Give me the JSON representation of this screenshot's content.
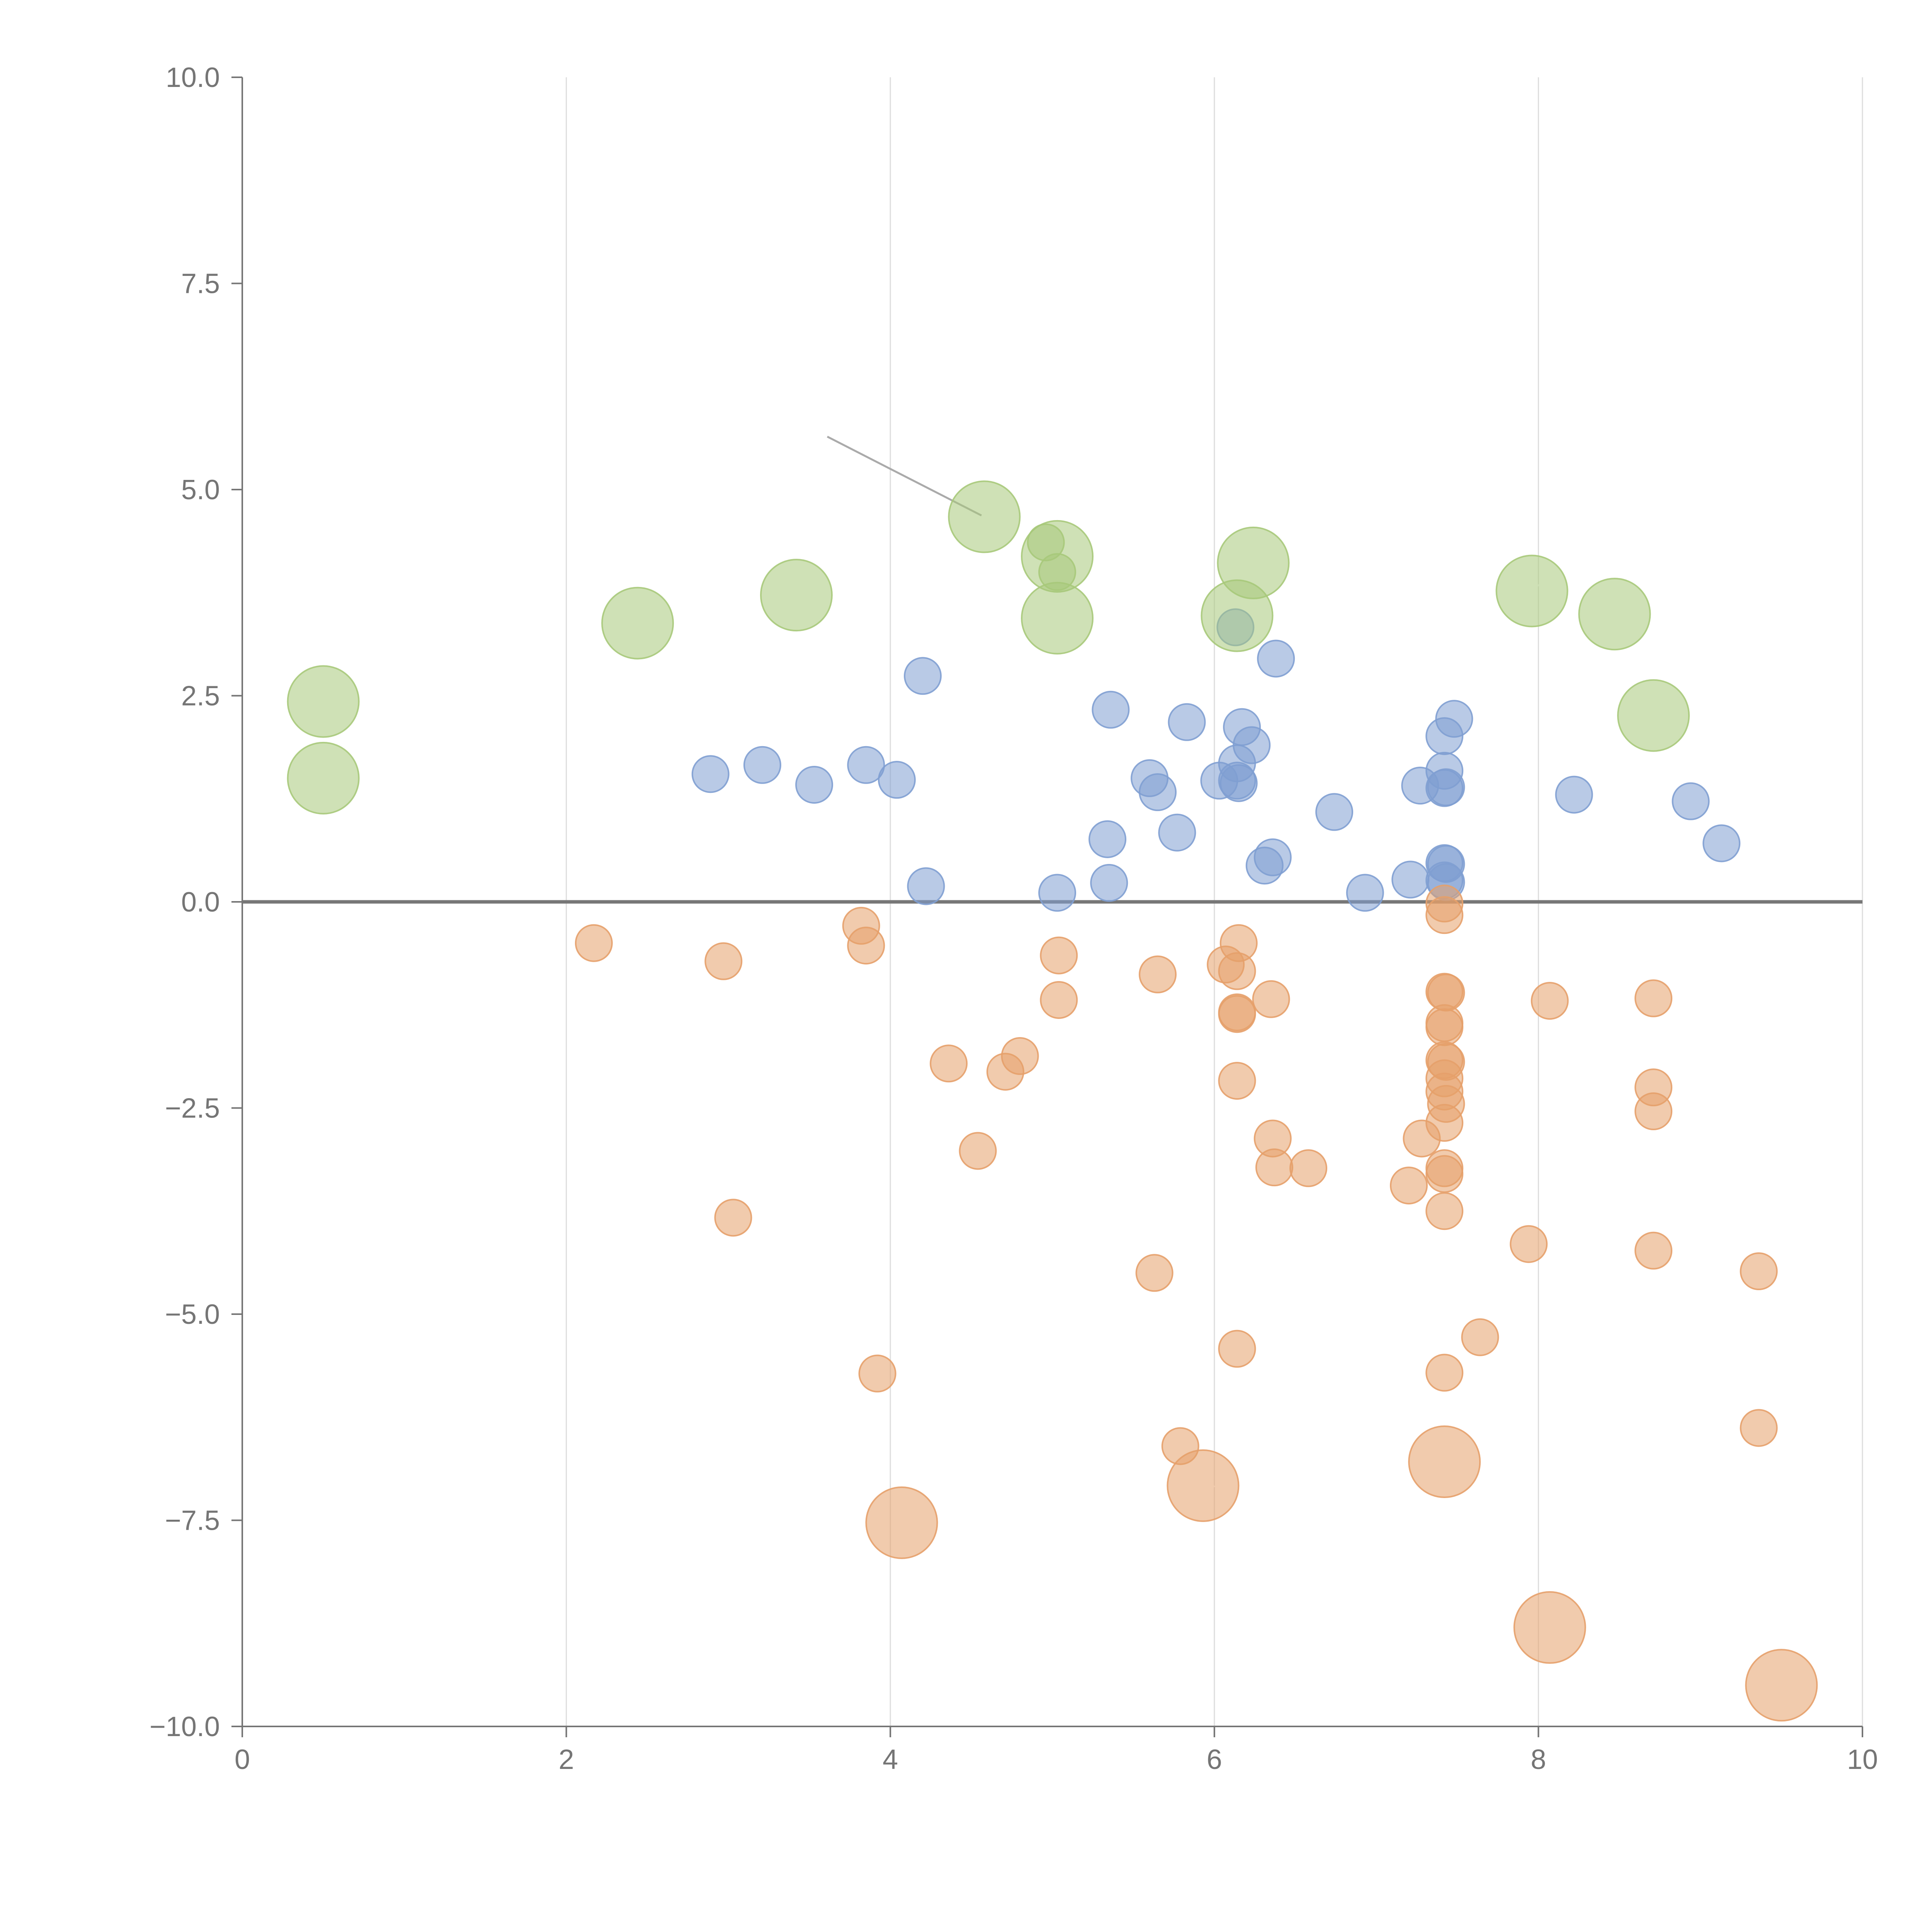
{
  "chart_data": {
    "type": "scatter",
    "title": "",
    "xlabel": "",
    "ylabel": "",
    "xlim": [
      0,
      10
    ],
    "ylim": [
      -10,
      10
    ],
    "x_ticks": [
      "0",
      "2",
      "4",
      "6",
      "8",
      "10"
    ],
    "x_tick_values": [
      0,
      2,
      4,
      6,
      8,
      10
    ],
    "y_ticks": [
      "10.0",
      "7.5",
      "5.0",
      "2.5",
      "0.0",
      "−2.5",
      "−5.0",
      "−7.5",
      "−10.0"
    ],
    "y_tick_values": [
      10,
      7.5,
      5,
      2.5,
      0,
      -2.5,
      -5,
      -7.5,
      -10
    ],
    "grid": "vertical",
    "reference_line_y": 0,
    "colors": {
      "blue": "#7f9fd1",
      "orange": "#e6a06a",
      "green": "#a7c97a",
      "axis": "#757575",
      "grid": "#dddddd"
    },
    "series": [
      {
        "name": "blue",
        "color": "#7f9fd1",
        "size": 1,
        "points": [
          [
            2.89,
            1.55
          ],
          [
            3.21,
            1.66
          ],
          [
            3.53,
            1.42
          ],
          [
            3.85,
            1.66
          ],
          [
            4.04,
            1.48
          ],
          [
            4.2,
            2.74
          ],
          [
            4.22,
            0.19
          ],
          [
            5.03,
            0.11
          ],
          [
            5.34,
            0.76
          ],
          [
            5.35,
            0.23
          ],
          [
            5.36,
            2.33
          ],
          [
            5.6,
            1.5
          ],
          [
            5.65,
            1.33
          ],
          [
            5.77,
            0.84
          ],
          [
            5.83,
            2.18
          ],
          [
            6.03,
            1.47
          ],
          [
            6.14,
            1.68
          ],
          [
            6.15,
            1.44
          ],
          [
            6.14,
            1.47
          ],
          [
            6.17,
            2.12
          ],
          [
            6.23,
            1.9
          ],
          [
            6.31,
            0.44
          ],
          [
            6.36,
            0.54
          ],
          [
            6.38,
            2.95
          ],
          [
            6.13,
            3.33
          ],
          [
            6.74,
            1.09
          ],
          [
            6.93,
            0.11
          ],
          [
            7.21,
            0.27
          ],
          [
            7.27,
            1.41
          ],
          [
            7.42,
            2.01
          ],
          [
            7.42,
            1.59
          ],
          [
            7.42,
            1.38
          ],
          [
            7.43,
            1.39
          ],
          [
            7.42,
            0.47
          ],
          [
            7.43,
            0.46
          ],
          [
            7.42,
            0.26
          ],
          [
            7.43,
            0.24
          ],
          [
            7.48,
            2.22
          ],
          [
            8.22,
            1.3
          ],
          [
            8.94,
            1.22
          ],
          [
            9.13,
            0.71
          ]
        ]
      },
      {
        "name": "orange",
        "color": "#e6a06a",
        "size": 1,
        "points": [
          [
            2.17,
            -0.5
          ],
          [
            2.97,
            -0.72
          ],
          [
            3.03,
            -3.83
          ],
          [
            3.82,
            -0.29
          ],
          [
            3.85,
            -0.53
          ],
          [
            3.92,
            -5.72
          ],
          [
            4.36,
            -1.96
          ],
          [
            4.54,
            -3.02
          ],
          [
            4.71,
            -2.06
          ],
          [
            4.8,
            -1.87
          ],
          [
            5.04,
            -0.65
          ],
          [
            5.04,
            -1.19
          ],
          [
            5.63,
            -4.5
          ],
          [
            5.65,
            -0.88
          ],
          [
            5.79,
            -6.6
          ],
          [
            6.07,
            -0.76
          ],
          [
            6.15,
            -0.5
          ],
          [
            6.14,
            -0.84
          ],
          [
            6.14,
            -1.36
          ],
          [
            6.14,
            -1.34
          ],
          [
            6.14,
            -2.17
          ],
          [
            6.14,
            -5.42
          ],
          [
            6.35,
            -1.18
          ],
          [
            6.36,
            -2.87
          ],
          [
            6.37,
            -3.22
          ],
          [
            6.58,
            -3.23
          ],
          [
            7.2,
            -3.44
          ],
          [
            7.28,
            -2.87
          ],
          [
            7.42,
            -0.02
          ],
          [
            7.42,
            -0.16
          ],
          [
            7.42,
            -1.09
          ],
          [
            7.43,
            -1.1
          ],
          [
            7.42,
            -1.47
          ],
          [
            7.42,
            -1.52
          ],
          [
            7.42,
            -1.92
          ],
          [
            7.43,
            -1.94
          ],
          [
            7.42,
            -2.14
          ],
          [
            7.42,
            -2.3
          ],
          [
            7.43,
            -2.45
          ],
          [
            7.42,
            -2.68
          ],
          [
            7.42,
            -3.23
          ],
          [
            7.42,
            -3.3
          ],
          [
            7.42,
            -3.75
          ],
          [
            7.42,
            -5.71
          ],
          [
            7.64,
            -5.28
          ],
          [
            7.94,
            -4.15
          ],
          [
            8.07,
            -1.2
          ],
          [
            8.71,
            -1.17
          ],
          [
            8.71,
            -2.25
          ],
          [
            8.71,
            -2.54
          ],
          [
            8.71,
            -4.23
          ],
          [
            9.36,
            -4.48
          ],
          [
            9.36,
            -6.38
          ]
        ]
      },
      {
        "name": "orange-large",
        "color": "#e6a06a",
        "size": 2,
        "points": [
          [
            4.07,
            -7.53
          ],
          [
            5.93,
            -7.08
          ],
          [
            7.42,
            -6.79
          ],
          [
            8.07,
            -8.8
          ],
          [
            9.5,
            -9.5
          ]
        ]
      },
      {
        "name": "green",
        "color": "#a7c97a",
        "size": 2,
        "points": [
          [
            0.5,
            2.43
          ],
          [
            0.5,
            1.5
          ],
          [
            2.44,
            3.38
          ],
          [
            3.42,
            3.72
          ],
          [
            4.58,
            4.67
          ],
          [
            5.03,
            4.19
          ],
          [
            5.03,
            3.44
          ],
          [
            6.14,
            3.47
          ],
          [
            6.24,
            4.11
          ],
          [
            7.96,
            3.77
          ],
          [
            8.47,
            3.49
          ],
          [
            8.71,
            2.26
          ]
        ]
      },
      {
        "name": "green-small",
        "color": "#a7c97a",
        "size": 1,
        "points": [
          [
            4.96,
            4.36
          ],
          [
            5.03,
            4.0
          ]
        ]
      }
    ]
  }
}
